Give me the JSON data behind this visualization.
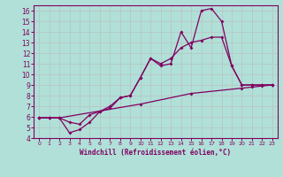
{
  "background_color": "#b0e0d8",
  "grid_color": "#c8d8d0",
  "line_color": "#800060",
  "xlabel": "Windchill (Refroidissement éolien,°C)",
  "xlim": [
    -0.5,
    23.5
  ],
  "ylim": [
    4,
    16.5
  ],
  "xticks": [
    0,
    1,
    2,
    3,
    4,
    5,
    6,
    7,
    8,
    9,
    10,
    11,
    12,
    13,
    14,
    15,
    16,
    17,
    18,
    19,
    20,
    21,
    22,
    23
  ],
  "yticks": [
    4,
    5,
    6,
    7,
    8,
    9,
    10,
    11,
    12,
    13,
    14,
    15,
    16
  ],
  "line1_x": [
    0,
    1,
    2,
    10,
    15,
    20,
    21,
    22,
    23
  ],
  "line1_y": [
    5.9,
    5.9,
    5.9,
    7.2,
    8.2,
    8.7,
    8.8,
    8.9,
    9.0
  ],
  "line2_x": [
    0,
    1,
    2,
    3,
    4,
    5,
    6,
    7,
    8,
    9,
    10,
    11,
    12,
    13,
    14,
    15,
    16,
    17,
    18,
    19,
    20,
    21,
    22,
    23
  ],
  "line2_y": [
    5.9,
    5.9,
    5.9,
    5.5,
    5.3,
    6.2,
    6.5,
    6.8,
    7.8,
    8.0,
    9.7,
    11.5,
    11.0,
    11.5,
    12.5,
    13.0,
    13.2,
    13.5,
    13.5,
    10.8,
    9.0,
    9.0,
    9.0,
    9.0
  ],
  "line3_x": [
    0,
    1,
    2,
    3,
    4,
    5,
    6,
    7,
    8,
    9,
    10,
    11,
    12,
    13,
    14,
    15,
    16,
    17,
    18,
    19,
    20,
    21,
    22,
    23
  ],
  "line3_y": [
    5.9,
    5.9,
    5.9,
    4.5,
    4.8,
    5.5,
    6.5,
    7.0,
    7.8,
    8.0,
    9.7,
    11.5,
    10.8,
    11.0,
    14.0,
    12.5,
    16.0,
    16.2,
    15.0,
    10.8,
    9.0,
    9.0,
    9.0,
    9.0
  ]
}
